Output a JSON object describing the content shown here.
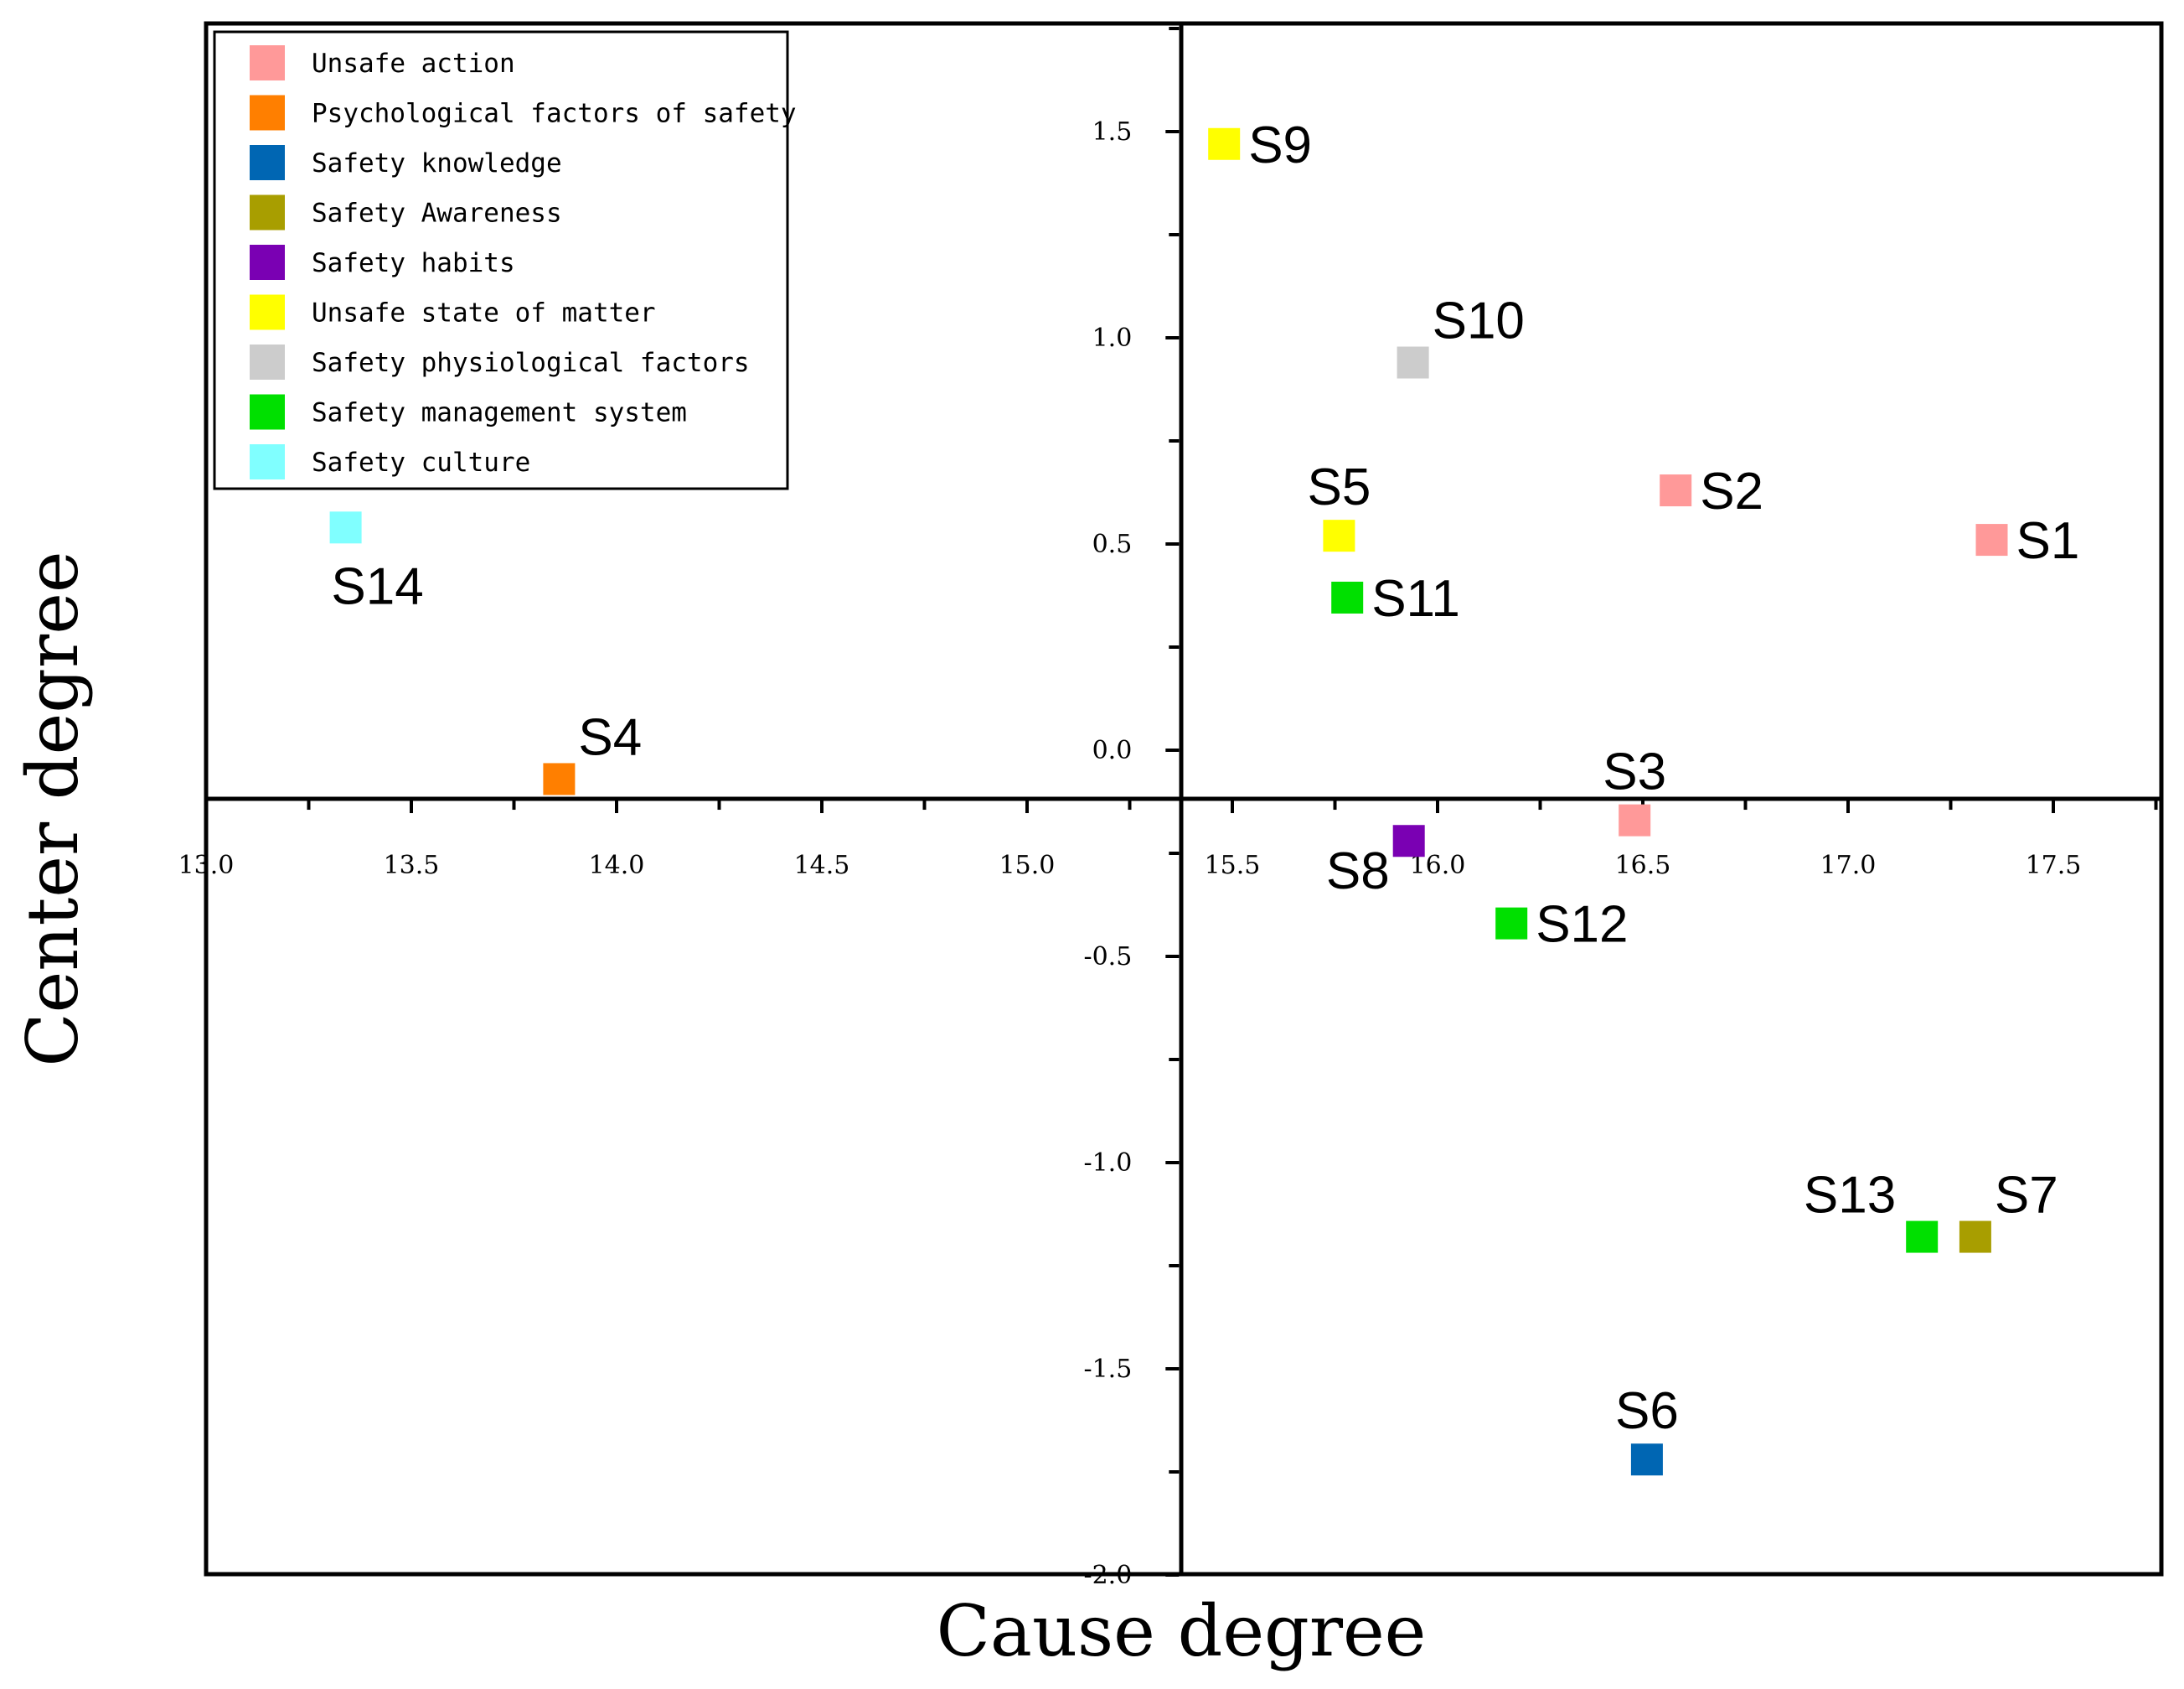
{
  "chart_data": {
    "type": "scatter",
    "xlabel": "Cause degree",
    "ylabel": "Center degree",
    "xlim": [
      13.0,
      17.75
    ],
    "ylim": [
      -2.0,
      1.75
    ],
    "x_origin": 15.37,
    "y_origin": -0.12,
    "xticks": [
      "13.0",
      "13.5",
      "14.0",
      "14.5",
      "15.0",
      "15.5",
      "16.0",
      "16.5",
      "17.0",
      "17.5"
    ],
    "yticks": [
      "1.5",
      "1.0",
      "0.5",
      "0.0",
      "-0.5",
      "-1.0",
      "-1.5",
      "-2.0"
    ],
    "legend_position": "top-left",
    "categories": [
      {
        "name": "Unsafe action",
        "color": "#FF9999"
      },
      {
        "name": "Psychological factors of safety",
        "color": "#FF7F00"
      },
      {
        "name": "Safety knowledge",
        "color": "#0066B3"
      },
      {
        "name": "Safety Awareness",
        "color": "#A89E00"
      },
      {
        "name": "Safety habits",
        "color": "#7A00B3"
      },
      {
        "name": "Unsafe state of matter",
        "color": "#FFFF00"
      },
      {
        "name": "Safety physiological factors",
        "color": "#CCCCCC"
      },
      {
        "name": "Safety management system",
        "color": "#00E000"
      },
      {
        "name": "Safety culture",
        "color": "#80FFFF"
      }
    ],
    "points": [
      {
        "label": "S1",
        "x": 17.35,
        "y": 0.51,
        "category": 0,
        "label_pos": "right"
      },
      {
        "label": "S2",
        "x": 16.58,
        "y": 0.63,
        "category": 0,
        "label_pos": "right"
      },
      {
        "label": "S3",
        "x": 16.48,
        "y": -0.17,
        "category": 0,
        "label_pos": "above"
      },
      {
        "label": "S4",
        "x": 13.86,
        "y": -0.07,
        "category": 1,
        "label_pos": "above-right"
      },
      {
        "label": "S5",
        "x": 15.76,
        "y": 0.52,
        "category": 5,
        "label_pos": "above"
      },
      {
        "label": "S6",
        "x": 16.51,
        "y": -1.72,
        "category": 2,
        "label_pos": "above"
      },
      {
        "label": "S7",
        "x": 17.31,
        "y": -1.18,
        "category": 3,
        "label_pos": "above-right"
      },
      {
        "label": "S8",
        "x": 15.93,
        "y": -0.22,
        "category": 4,
        "label_pos": "below-left"
      },
      {
        "label": "S9",
        "x": 15.48,
        "y": 1.47,
        "category": 5,
        "label_pos": "right"
      },
      {
        "label": "S10",
        "x": 15.94,
        "y": 0.94,
        "category": 6,
        "label_pos": "above-right"
      },
      {
        "label": "S11",
        "x": 15.78,
        "y": 0.37,
        "category": 7,
        "label_pos": "right"
      },
      {
        "label": "S12",
        "x": 16.18,
        "y": -0.42,
        "category": 7,
        "label_pos": "right"
      },
      {
        "label": "S13",
        "x": 17.18,
        "y": -1.18,
        "category": 7,
        "label_pos": "above-left"
      },
      {
        "label": "S14",
        "x": 13.34,
        "y": 0.54,
        "category": 8,
        "label_pos": "below"
      }
    ]
  }
}
